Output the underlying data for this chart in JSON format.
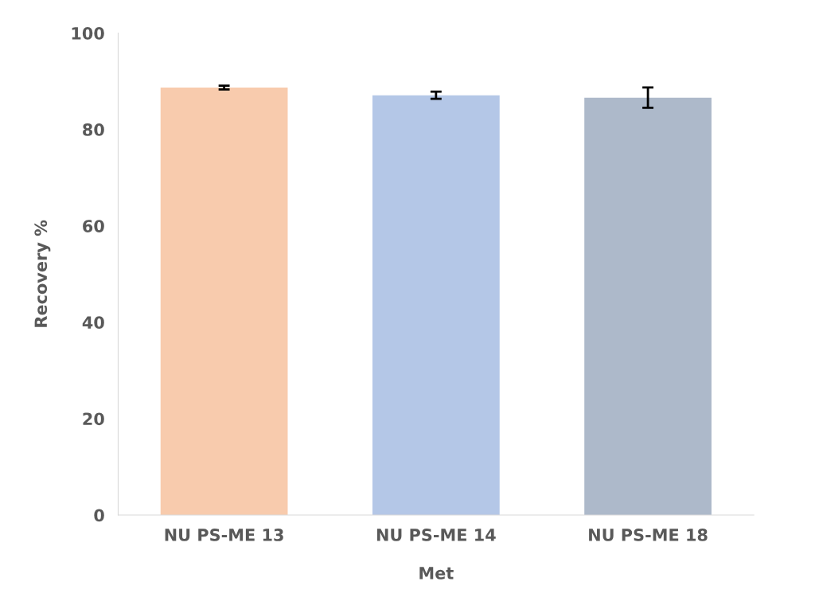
{
  "chart_data": {
    "type": "bar",
    "xlabel": "Met",
    "ylabel": "Recovery %",
    "categories": [
      "NU PS-ME 13",
      "NU PS-ME 14",
      "NU PS-ME 18"
    ],
    "values": [
      88.7,
      87.1,
      86.6
    ],
    "colors": [
      "#f8cbad",
      "#b4c7e7",
      "#adb9ca"
    ],
    "errors": [
      0.4,
      0.75,
      2.1
    ],
    "ylim": [
      0,
      100
    ],
    "yticks": [
      0,
      20,
      40,
      60,
      80,
      100
    ],
    "grid": false
  }
}
